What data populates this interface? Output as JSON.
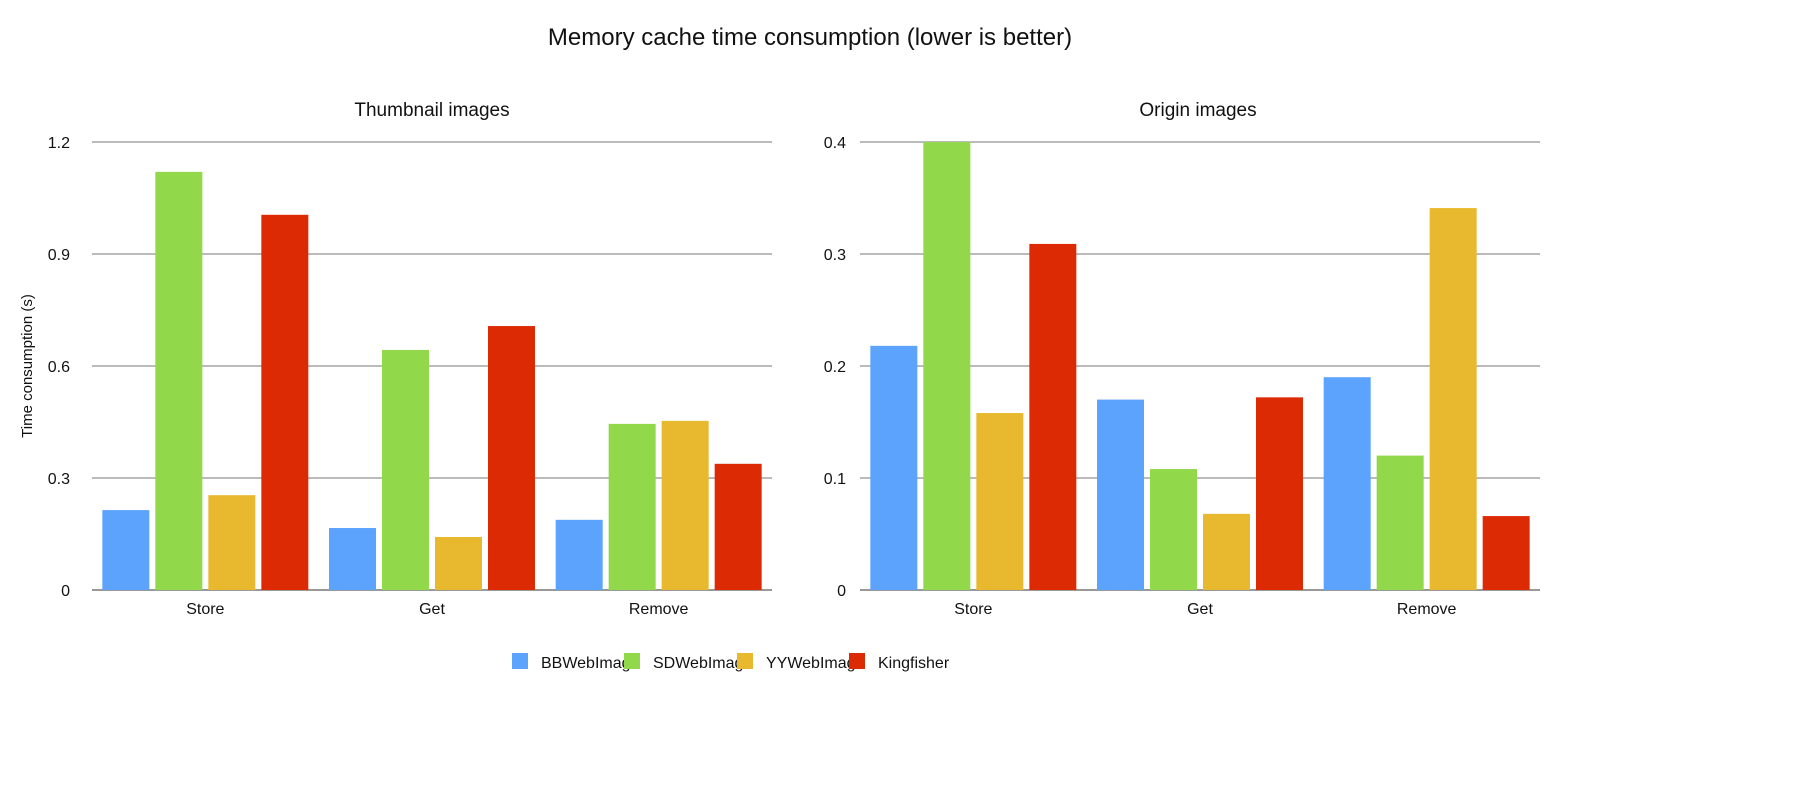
{
  "chart_data": [
    {
      "type": "bar",
      "suptitle": "Memory cache time consumption (lower is better)",
      "title": "Thumbnail images",
      "ylabel": "Time consumption (s)",
      "xlabel": "",
      "ylim": [
        0,
        1.2
      ],
      "yticks": [
        "0",
        "0.3",
        "0.6",
        "0.9",
        "1.2"
      ],
      "ytick_values": [
        0,
        0.3,
        0.6,
        0.9,
        1.2
      ],
      "grid": true,
      "categories": [
        "Store",
        "Get",
        "Remove"
      ],
      "series": [
        {
          "name": "BBWebImage",
          "color": "#5ba3fd",
          "values": [
            0.214,
            0.166,
            0.188
          ]
        },
        {
          "name": "SDWebImage",
          "color": "#91d84b",
          "values": [
            1.12,
            0.643,
            0.445
          ]
        },
        {
          "name": "YYWebImage",
          "color": "#e8b92e",
          "values": [
            0.254,
            0.142,
            0.453
          ]
        },
        {
          "name": "Kingfisher",
          "color": "#dc2a05",
          "values": [
            1.005,
            0.707,
            0.338
          ]
        }
      ]
    },
    {
      "type": "bar",
      "title": "Origin images",
      "ylabel": "",
      "xlabel": "",
      "ylim": [
        0,
        0.4
      ],
      "yticks": [
        "0",
        "0.1",
        "0.2",
        "0.3",
        "0.4"
      ],
      "ytick_values": [
        0,
        0.1,
        0.2,
        0.3,
        0.4
      ],
      "grid": true,
      "categories": [
        "Store",
        "Get",
        "Remove"
      ],
      "series": [
        {
          "name": "BBWebImage",
          "color": "#5ba3fd",
          "values": [
            0.218,
            0.17,
            0.19
          ]
        },
        {
          "name": "SDWebImage",
          "color": "#91d84b",
          "values": [
            0.4,
            0.108,
            0.12
          ]
        },
        {
          "name": "YYWebImage",
          "color": "#e8b92e",
          "values": [
            0.158,
            0.068,
            0.341
          ]
        },
        {
          "name": "Kingfisher",
          "color": "#dc2a05",
          "values": [
            0.309,
            0.172,
            0.066
          ]
        }
      ]
    }
  ],
  "legend": {
    "placement": "bottom-center",
    "items": [
      {
        "label": "BBWebImage",
        "color": "#5ba3fd"
      },
      {
        "label": "SDWebImage",
        "color": "#91d84b"
      },
      {
        "label": "YYWebImage",
        "color": "#e8b92e"
      },
      {
        "label": "Kingfisher",
        "color": "#dc2a05"
      }
    ]
  }
}
